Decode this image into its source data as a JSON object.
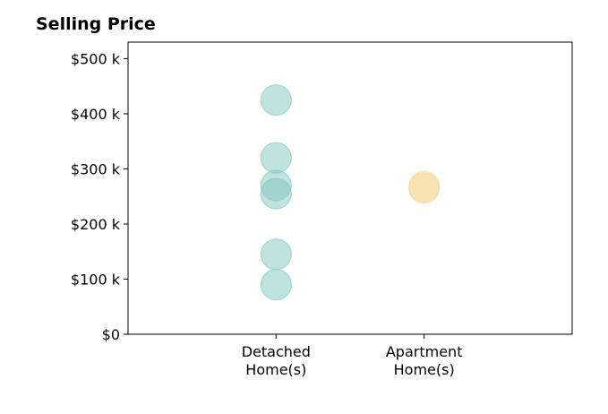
{
  "chart_data": {
    "type": "scatter",
    "title": "Selling Price",
    "categories": [
      [
        "Detached",
        "Home(s)"
      ],
      [
        "Apartment",
        "Home(s)"
      ]
    ],
    "series": [
      {
        "category": 0,
        "color": "#7fc7bd",
        "values": [
          425000,
          320000,
          270000,
          255000,
          145000,
          90000
        ]
      },
      {
        "category": 1,
        "color": "#f5d99a",
        "values": [
          268000,
          265000
        ]
      }
    ],
    "yticks": [
      0,
      100000,
      200000,
      300000,
      400000,
      500000
    ],
    "ytick_labels": [
      "$0",
      "$100 k",
      "$200 k",
      "$300 k",
      "$400 k",
      "$500 k"
    ],
    "ylim": [
      0,
      530000
    ],
    "xlim": [
      0,
      3
    ],
    "grid": false,
    "legend": "none"
  }
}
